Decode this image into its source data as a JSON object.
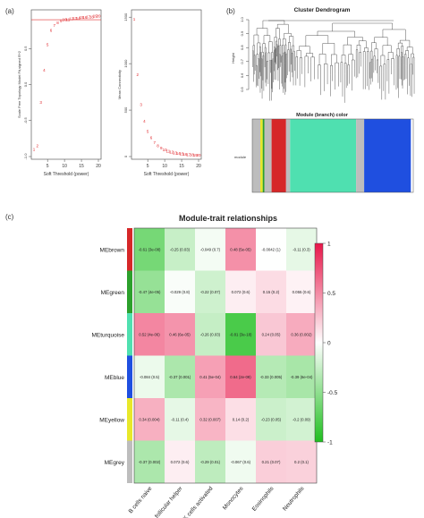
{
  "panels": {
    "a": "(a)",
    "b": "(b)",
    "c": "(c)"
  },
  "chart_data": [
    {
      "type": "scatter",
      "id": "scale-free",
      "xlabel": "Soft Threshold (power)",
      "ylabel": "Scale Free Topology Model Fit,signed R^2",
      "xlim": [
        1,
        20
      ],
      "ylim": [
        -1.0,
        1.0
      ],
      "xticks": [
        5,
        10,
        15,
        20
      ],
      "yticks": [
        -1.0,
        -0.5,
        0.0,
        0.5
      ],
      "hline": 0.9,
      "x": [
        1,
        2,
        3,
        4,
        5,
        6,
        7,
        8,
        9,
        10,
        11,
        12,
        13,
        14,
        15,
        16,
        17,
        18,
        19,
        20
      ],
      "y": [
        -0.9,
        -0.85,
        -0.25,
        0.2,
        0.55,
        0.75,
        0.82,
        0.86,
        0.88,
        0.9,
        0.9,
        0.91,
        0.92,
        0.92,
        0.93,
        0.93,
        0.94,
        0.94,
        0.95,
        0.95
      ]
    },
    {
      "type": "scatter",
      "id": "mean-connectivity",
      "xlabel": "Soft Threshold (power)",
      "ylabel": "Mean Connectivity",
      "xlim": [
        1,
        20
      ],
      "ylim": [
        0,
        1550
      ],
      "xticks": [
        5,
        10,
        15,
        20
      ],
      "yticks": [
        0,
        500,
        1000,
        1500
      ],
      "x": [
        1,
        2,
        3,
        4,
        5,
        6,
        7,
        8,
        9,
        10,
        11,
        12,
        13,
        14,
        15,
        16,
        17,
        18,
        19,
        20
      ],
      "y": [
        1480,
        880,
        560,
        380,
        270,
        200,
        150,
        115,
        90,
        72,
        58,
        47,
        39,
        32,
        27,
        23,
        20,
        17,
        15,
        13
      ]
    },
    {
      "type": "heatmap",
      "id": "module-trait",
      "title": "Module-trait relationships",
      "rows": [
        "MEbrown",
        "MEgreen",
        "MEturquoise",
        "MEblue",
        "MEyellow",
        "MEgrey"
      ],
      "row_colors": [
        "#d62728",
        "#2ca02c",
        "#4fe0b0",
        "#1f4fe0",
        "#e8e82a",
        "#bdbdbd"
      ],
      "columns": [
        "B cells naive",
        "T cells follicular helper",
        "NK cells activated",
        "Monocytes",
        "Eosinophils",
        "Neutrophils"
      ],
      "values": [
        [
          -0.61,
          -0.25,
          -0.049,
          0.48,
          -0.0042,
          -0.11
        ],
        [
          -0.47,
          -0.029,
          -0.22,
          0.072,
          0.15,
          0.055
        ],
        [
          0.52,
          0.46,
          -0.26,
          -0.81,
          0.24,
          0.36
        ],
        [
          -0.084,
          -0.37,
          0.41,
          0.64,
          -0.33,
          -0.39
        ],
        [
          0.34,
          -0.11,
          0.32,
          0.14,
          -0.23,
          -0.2
        ],
        [
          -0.37,
          0.072,
          -0.29,
          -0.067,
          0.21,
          0.2
        ]
      ],
      "labels": [
        [
          "-0.61 (3e-08)",
          "-0.25 (0.03)",
          "-0.049 (0.7)",
          "0.48 (5e-05)",
          "-0.0042 (1)",
          "-0.11 (0.3)"
        ],
        [
          "-0.47 (4e-05)",
          "-0.029 (0.8)",
          "-0.22 (0.07)",
          "0.072 (0.6)",
          "0.15 (0.2)",
          "0.055 (0.6)"
        ],
        [
          "0.52 (4e-06)",
          "0.46 (6e-05)",
          "-0.26 (0.03)",
          "-0.81 (3e-18)",
          "0.24 (0.05)",
          "0.36 (0.002)"
        ],
        [
          "-0.084 (0.5)",
          "-0.37 (0.001)",
          "0.41 (5e-04)",
          "0.64 (2e-09)",
          "-0.33 (0.005)",
          "-0.39 (6e-04)"
        ],
        [
          "0.34 (0.004)",
          "-0.11 (0.4)",
          "0.32 (0.007)",
          "0.14 (0.2)",
          "-0.23 (0.05)",
          "-0.2 (0.09)"
        ],
        [
          "-0.37 (0.002)",
          "0.072 (0.6)",
          "-0.29 (0.01)",
          "-0.067 (0.6)",
          "0.21 (0.07)",
          "0.2 (0.1)"
        ]
      ],
      "colorbar_ticks": [
        "1",
        "0.5",
        "0",
        "-0.5",
        "-1"
      ],
      "colorbar_values": [
        1,
        0.5,
        0,
        -0.5,
        -1
      ],
      "colors": {
        "low": "#1fbf1f",
        "mid": "#ffffff",
        "high": "#e8174a"
      }
    }
  ],
  "dendrogram": {
    "title": "Cluster Dendrogram",
    "ylabel": "Height",
    "yticks": [
      "1.0",
      "0.9",
      "0.8",
      "0.7",
      "0.6",
      "0.5"
    ],
    "colorbar_title": "Module (branch) color",
    "colorbar_label": "module",
    "color_segments": [
      {
        "color": "#bdbdbd",
        "w": 0.05
      },
      {
        "color": "#e8e82a",
        "w": 0.015
      },
      {
        "color": "#2ca02c",
        "w": 0.01
      },
      {
        "color": "#bdbdbd",
        "w": 0.045
      },
      {
        "color": "#d62728",
        "w": 0.09
      },
      {
        "color": "#bdbdbd",
        "w": 0.025
      },
      {
        "color": "#4fe0b0",
        "w": 0.41
      },
      {
        "color": "#bdbdbd",
        "w": 0.05
      },
      {
        "color": "#1f4fe0",
        "w": 0.29
      }
    ]
  }
}
